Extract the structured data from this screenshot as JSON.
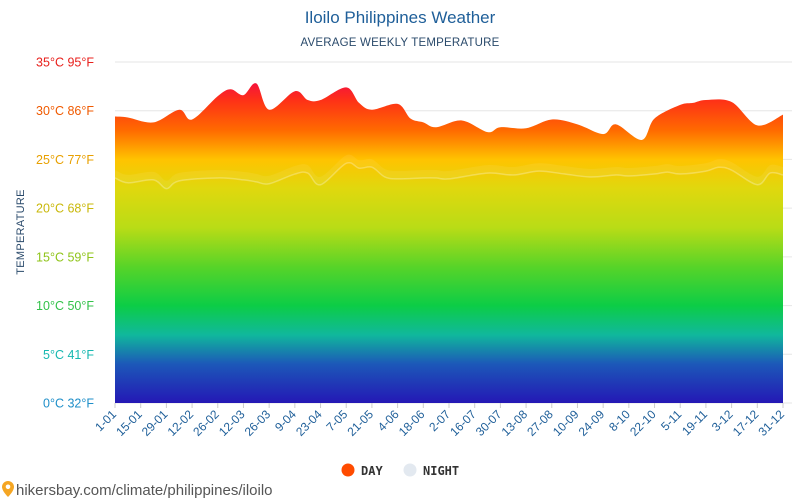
{
  "colors": {
    "title": "#1f5f99",
    "day_marker": "#ff4b00",
    "night_marker": "#e3e9f0",
    "gradient_stops": [
      {
        "celsius": 0,
        "color": "#2418b5"
      },
      {
        "celsius": 4,
        "color": "#1c58b8"
      },
      {
        "celsius": 7,
        "color": "#10b89c"
      },
      {
        "celsius": 10,
        "color": "#0ccd46"
      },
      {
        "celsius": 14,
        "color": "#58d428"
      },
      {
        "celsius": 18,
        "color": "#b9dc16"
      },
      {
        "celsius": 22,
        "color": "#e0d80e"
      },
      {
        "celsius": 25,
        "color": "#ffc300"
      },
      {
        "celsius": 28,
        "color": "#ff6a00"
      },
      {
        "celsius": 31,
        "color": "#fe3216"
      },
      {
        "celsius": 33,
        "color": "#f4103e"
      }
    ]
  },
  "chart_data": {
    "type": "area",
    "title": "Iloilo Philippines Weather",
    "subtitle": "AVERAGE WEEKLY TEMPERATURE",
    "ylabel": "TEMPERATURE",
    "ylim": [
      0,
      35
    ],
    "grid": true,
    "legend_position": "bottom",
    "y_ticks": [
      {
        "value": 0,
        "label": "0°C 32°F",
        "color": "#1f8fc9"
      },
      {
        "value": 5,
        "label": "5°C 41°F",
        "color": "#17b8b0"
      },
      {
        "value": 10,
        "label": "10°C 50°F",
        "color": "#33c24a"
      },
      {
        "value": 15,
        "label": "15°C 59°F",
        "color": "#8fc419"
      },
      {
        "value": 20,
        "label": "20°C 68°F",
        "color": "#c9b80a"
      },
      {
        "value": 25,
        "label": "25°C 77°F",
        "color": "#e8a000"
      },
      {
        "value": 30,
        "label": "30°C 86°F",
        "color": "#f05a00"
      },
      {
        "value": 35,
        "label": "35°C 95°F",
        "color": "#e8201c"
      }
    ],
    "x_labels": [
      "1-01",
      "15-01",
      "29-01",
      "12-02",
      "26-02",
      "12-03",
      "26-03",
      "9-04",
      "23-04",
      "7-05",
      "21-05",
      "4-06",
      "18-06",
      "2-07",
      "16-07",
      "30-07",
      "13-08",
      "27-08",
      "10-09",
      "24-09",
      "8-10",
      "22-10",
      "5-11",
      "19-11",
      "3-12",
      "17-12",
      "31-12"
    ],
    "series": [
      {
        "name": "DAY",
        "color": "#ff4b00",
        "values": [
          29.4,
          29.3,
          28.8,
          30.1,
          29.1,
          31.5,
          32.2,
          31.6,
          32.8,
          30.1,
          32.0,
          31.1,
          31.1,
          32.4,
          30.8,
          30.1,
          30.7,
          29.2,
          28.8,
          28.3,
          29.0,
          27.8,
          28.3,
          28.2,
          29.1,
          28.6,
          27.6,
          28.6,
          27.0,
          29.2,
          30.6,
          30.8,
          31.1,
          30.9,
          28.5,
          29.6
        ],
        "x": [
          "1-01",
          "8-01",
          "22-01",
          "5-02",
          "12-02",
          "26-02",
          "5-03",
          "12-03",
          "19-03",
          "26-03",
          "9-04",
          "16-04",
          "23-04",
          "7-05",
          "14-05",
          "21-05",
          "4-06",
          "11-06",
          "18-06",
          "25-06",
          "9-07",
          "23-07",
          "30-07",
          "13-08",
          "27-08",
          "10-09",
          "24-09",
          "1-10",
          "15-10",
          "22-10",
          "5-11",
          "12-11",
          "19-11",
          "3-12",
          "17-12",
          "31-12"
        ]
      },
      {
        "name": "NIGHT",
        "color": "#e3e9f0",
        "values": [
          23.1,
          22.6,
          22.9,
          22.0,
          22.8,
          23.1,
          22.9,
          22.7,
          22.5,
          23.5,
          23.6,
          22.4,
          24.6,
          24.1,
          24.2,
          23.2,
          23.0,
          23.1,
          23.1,
          23.0,
          23.6,
          23.4,
          23.8,
          23.5,
          23.2,
          23.4,
          23.3,
          23.5,
          23.7,
          23.5,
          23.8,
          24.2,
          23.9,
          22.4,
          23.6,
          23.4
        ],
        "x": [
          "1-01",
          "8-01",
          "22-01",
          "29-01",
          "5-02",
          "26-02",
          "12-03",
          "19-03",
          "26-03",
          "9-04",
          "16-04",
          "23-04",
          "7-05",
          "14-05",
          "21-05",
          "28-05",
          "4-06",
          "18-06",
          "25-06",
          "2-07",
          "23-07",
          "6-08",
          "20-08",
          "3-09",
          "17-09",
          "1-10",
          "8-10",
          "22-10",
          "29-10",
          "5-11",
          "19-11",
          "26-11",
          "3-12",
          "17-12",
          "24-12",
          "31-12"
        ]
      }
    ]
  },
  "legend": {
    "day_label": "DAY",
    "night_label": "NIGHT"
  },
  "source": {
    "text": "hikersbay.com/climate/philippines/iloilo",
    "icon": "map-pin-icon"
  }
}
